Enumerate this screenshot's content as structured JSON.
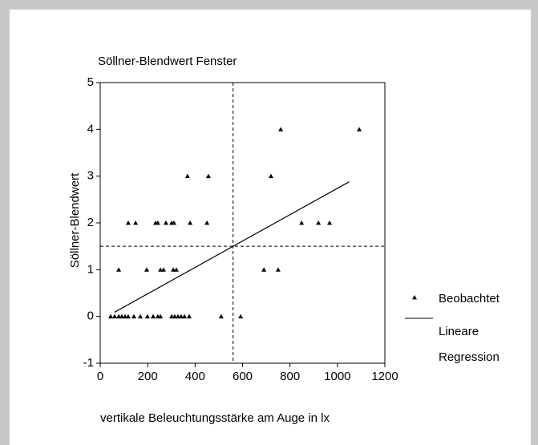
{
  "chart_data": {
    "type": "scatter",
    "title": "Söllner-Blendwert Fenster",
    "xlabel": "vertikale Beleuchtungsstärke am Auge in lx",
    "ylabel": "Söllner-Blendwert",
    "xlim": [
      0,
      1200
    ],
    "xticks": [
      0,
      200,
      400,
      600,
      800,
      1000,
      1200
    ],
    "ylim": [
      -1,
      5
    ],
    "yticks": [
      -1,
      0,
      1,
      2,
      3,
      4,
      5
    ],
    "reference_lines": {
      "x": 560,
      "y": 1.5
    },
    "series": [
      {
        "name": "Beobachtet",
        "type": "scatter",
        "color": "#000000",
        "x": [
          44,
          61,
          78,
          91,
          105,
          118,
          142,
          169,
          199,
          223,
          243,
          254,
          301,
          314,
          328,
          341,
          355,
          375,
          510,
          592,
          78,
          196,
          254,
          267,
          308,
          321,
          690,
          750,
          118,
          149,
          233,
          243,
          277,
          301,
          311,
          379,
          450,
          849,
          920,
          967,
          368,
          456,
          720,
          761,
          1092
        ],
        "values": [
          0,
          0,
          0,
          0,
          0,
          0,
          0,
          0,
          0,
          0,
          0,
          0,
          0,
          0,
          0,
          0,
          0,
          0,
          0,
          0,
          1,
          1,
          1,
          1,
          1,
          1,
          1,
          1,
          2,
          2,
          2,
          2,
          2,
          2,
          2,
          2,
          2,
          2,
          2,
          2,
          3,
          3,
          3,
          4,
          4
        ]
      },
      {
        "name": "Lineare Regression",
        "type": "line",
        "color": "#000000",
        "x": [
          60,
          1050
        ],
        "values": [
          0.09,
          2.88
        ]
      }
    ],
    "legend": "right"
  }
}
